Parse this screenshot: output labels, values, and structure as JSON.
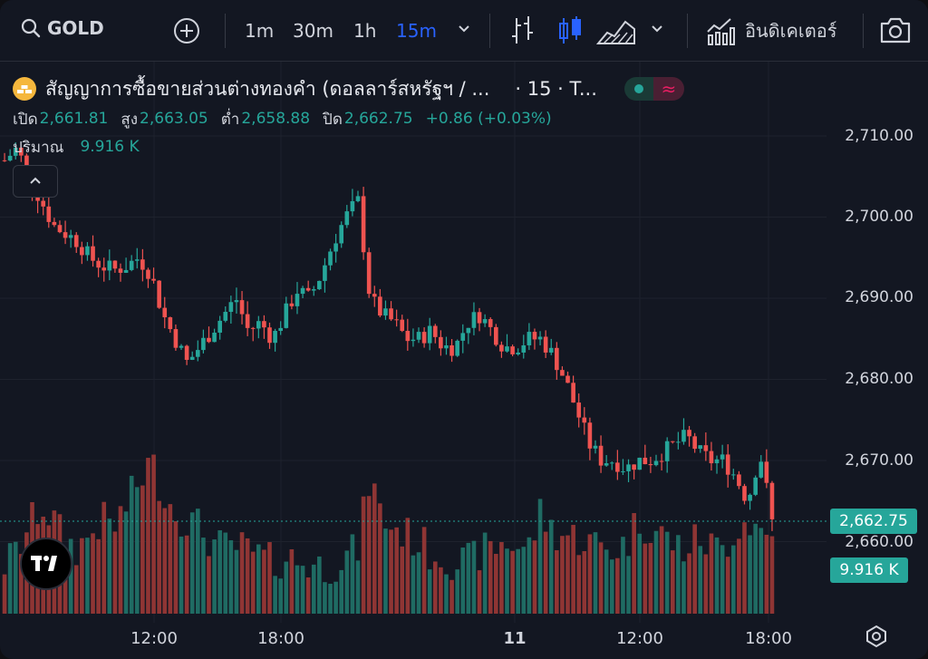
{
  "toolbar": {
    "symbol": "GOLD",
    "intervals": [
      "1m",
      "30m",
      "1h",
      "15m"
    ],
    "active_interval": "15m",
    "indicators_label": "อินดิเคเตอร์"
  },
  "legend": {
    "title": "สัญญาการซื้อขายส่วนต่างทองคำ (ดอลลาร์สหรัฐฯ / ...",
    "suffix": "· 15 · T...",
    "open_label": "เปิด",
    "open": "2,661.81",
    "high_label": "สูง",
    "high": "2,663.05",
    "low_label": "ต่ำ",
    "low": "2,658.88",
    "close_label": "ปิด",
    "close": "2,662.75",
    "change": "+0.86 (+0.03%)",
    "volume_label": "ปริมาณ",
    "volume": "9.916 K"
  },
  "price_axis": {
    "labels": [
      "2,710.00",
      "2,700.00",
      "2,690.00",
      "2,680.00",
      "2,670.00",
      "2,660.00"
    ],
    "current_price": "2,662.75",
    "current_volume": "9.916 K"
  },
  "time_axis": {
    "labels": [
      "12:00",
      "18:00",
      "11",
      "12:00",
      "18:00"
    ]
  },
  "colors": {
    "up": "#26a69a",
    "down": "#ef5350",
    "accent": "#2962ff",
    "bg": "#131722"
  },
  "chart_data": {
    "type": "candlestick",
    "symbol": "GOLD",
    "interval": "15m",
    "ylim": [
      2655,
      2712
    ],
    "x_ticks": [
      "12:00",
      "18:00",
      "11",
      "12:00",
      "18:00"
    ],
    "series": [
      {
        "name": "price",
        "close_path": [
          2707,
          2708.5,
          2705,
          2702,
          2699,
          2698,
          2697,
          2695,
          2694,
          2693.5,
          2694,
          2695,
          2693,
          2688,
          2685,
          2682,
          2684,
          2686,
          2688,
          2690,
          2686,
          2687,
          2685,
          2688,
          2691,
          2690,
          2693,
          2697,
          2700,
          2702,
          2690,
          2688,
          2687,
          2685,
          2685,
          2686,
          2684,
          2684,
          2687,
          2688,
          2686,
          2684,
          2684,
          2685,
          2685,
          2683,
          2680,
          2676,
          2672,
          2670,
          2670,
          2669,
          2670,
          2670,
          2671,
          2672,
          2673,
          2671,
          2670,
          2670,
          2668,
          2665,
          2671,
          2662.75
        ]
      },
      {
        "name": "volume",
        "level": [
          0.2,
          0.28,
          0.45,
          0.6,
          0.5,
          0.35,
          0.3,
          0.4,
          0.5,
          0.45,
          0.6,
          0.75,
          0.9,
          0.7,
          0.55,
          0.5,
          0.45,
          0.35,
          0.3,
          0.32,
          0.28,
          0.25,
          0.2,
          0.25,
          0.22,
          0.2,
          0.18,
          0.2,
          0.25,
          0.3,
          0.8,
          0.5,
          0.45,
          0.4,
          0.35,
          0.28,
          0.25,
          0.22,
          0.2,
          0.28,
          0.3,
          0.35,
          0.33,
          0.3,
          0.55,
          0.42,
          0.4,
          0.38,
          0.35,
          0.32,
          0.3,
          0.33,
          0.5,
          0.45,
          0.4,
          0.33,
          0.3,
          0.38,
          0.32,
          0.3,
          0.45,
          0.5,
          0.42,
          0.38
        ]
      }
    ]
  }
}
